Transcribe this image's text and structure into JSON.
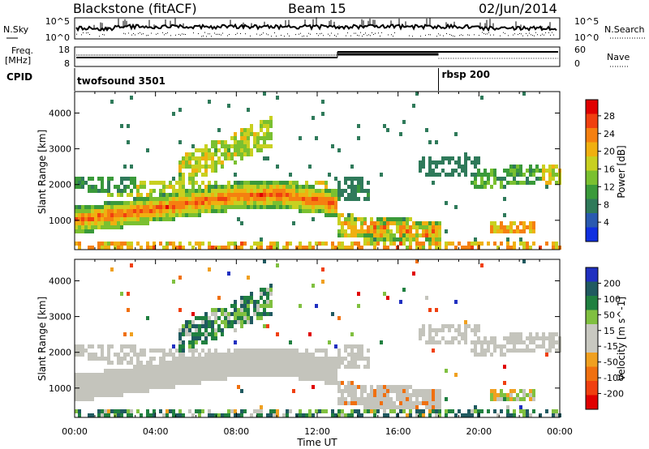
{
  "header": {
    "station": "Blackstone (fitACF)",
    "beam": "Beam 15",
    "date": "02/Jun/2014"
  },
  "noise_panel": {
    "left_label": "N.Sky",
    "right_label": "N.Search",
    "left_ticks": [
      "10^5",
      "10^0"
    ],
    "right_ticks": [
      "10^5",
      "10^0"
    ]
  },
  "freq_panel": {
    "left_label_1": "Freq.",
    "left_label_2": "[MHz]",
    "right_label": "Nave",
    "left_ticks": [
      "18",
      "8"
    ],
    "right_ticks": [
      "60",
      "0"
    ]
  },
  "cpid_panel": {
    "label": "CPID",
    "segments": [
      {
        "name": "twofsound 3501",
        "start_hour": 0,
        "end_hour": 18
      },
      {
        "name": "rbsp 200",
        "start_hour": 18,
        "end_hour": 24
      }
    ]
  },
  "chart_data": [
    {
      "type": "heatmap",
      "title": "",
      "xlabel": "Time UT",
      "ylabel": "Slant Range [km]",
      "x_ticks": [
        "00:00",
        "04:00",
        "08:00",
        "12:00",
        "16:00",
        "20:00",
        "00:00"
      ],
      "xlim": [
        0,
        24
      ],
      "y_ticks": [
        1000,
        2000,
        3000,
        4000
      ],
      "ylim": [
        180,
        4600
      ],
      "colorbar_label": "Power [dB]",
      "colorbar_ticks": [
        4,
        8,
        12,
        16,
        20,
        24,
        28
      ],
      "colorbar_colors": [
        "#1030e0",
        "#2a5ab0",
        "#2f7a5a",
        "#3a9a3a",
        "#7ac030",
        "#c8d020",
        "#f0b010",
        "#f58010",
        "#f04010",
        "#e00000"
      ],
      "features": [
        {
          "name": "main band",
          "range_km": [
            1050,
            1700
          ],
          "hours": [
            0,
            12.8
          ],
          "power_db": 22
        },
        {
          "name": "upper arc",
          "range_km": [
            2500,
            3500
          ],
          "hours": [
            5,
            9.5
          ],
          "power_db": 14
        },
        {
          "name": "late band",
          "range_km": [
            2000,
            2500
          ],
          "hours": [
            20,
            24
          ],
          "power_db": 10
        }
      ]
    },
    {
      "type": "heatmap",
      "title": "",
      "xlabel": "Time UT",
      "ylabel": "Slant Range [km]",
      "x_ticks": [
        "00:00",
        "04:00",
        "08:00",
        "12:00",
        "16:00",
        "20:00",
        "00:00"
      ],
      "xlim": [
        0,
        24
      ],
      "y_ticks": [
        1000,
        2000,
        3000,
        4000
      ],
      "ylim": [
        180,
        4600
      ],
      "colorbar_label": "Velocity [m s^-1]",
      "colorbar_ticks": [
        200,
        100,
        50,
        15,
        -15,
        -50,
        -100,
        -200
      ],
      "colorbar_colors": [
        "#2030c0",
        "#205a60",
        "#208040",
        "#80c040",
        "#c8c8c0",
        "#c8c8c0",
        "#f0a020",
        "#f07010",
        "#f04010",
        "#e00000"
      ],
      "features": [
        {
          "name": "ground scatter",
          "range_km": [
            900,
            2100
          ],
          "hours": [
            0,
            13
          ],
          "velocity": 0
        },
        {
          "name": "ionospheric arc",
          "range_km": [
            2800,
            3500
          ],
          "hours": [
            6.5,
            9.5
          ],
          "velocity": 60
        }
      ]
    }
  ]
}
